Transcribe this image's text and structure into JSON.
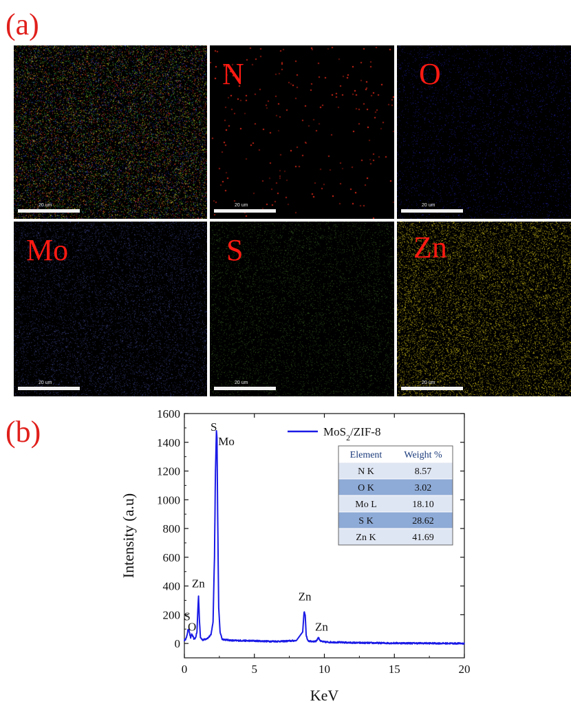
{
  "panel_a_label": "(a)",
  "panel_b_label": "(b)",
  "maps": [
    {
      "element": "",
      "scale_label": "20 um",
      "dot_colors": [
        "#c8c020",
        "#2a3cc0",
        "#d83020",
        "#30a030"
      ],
      "density": 0.22
    },
    {
      "element": "N",
      "scale_label": "20 um",
      "dot_colors": [
        "#e02a1a"
      ],
      "density": 0.003
    },
    {
      "element": "O",
      "scale_label": "20 um",
      "dot_colors": [
        "#1a1a90"
      ],
      "density": 0.06
    },
    {
      "element": "Mo",
      "scale_label": "20 um",
      "dot_colors": [
        "#28306a",
        "#3a4080"
      ],
      "density": 0.12
    },
    {
      "element": "S",
      "scale_label": "20 um",
      "dot_colors": [
        "#2a4a1a",
        "#345820"
      ],
      "density": 0.1
    },
    {
      "element": "Zn",
      "scale_label": "20 um",
      "dot_colors": [
        "#c8b818",
        "#a89a10"
      ],
      "density": 0.2
    }
  ],
  "chart_data": {
    "type": "line",
    "xlabel": "KeV",
    "ylabel": "Intensity (a.u)",
    "xlim": [
      0,
      20
    ],
    "ylim": [
      -100,
      1600
    ],
    "xticks": [
      0,
      5,
      10,
      15,
      20
    ],
    "yticks": [
      0,
      200,
      400,
      600,
      800,
      1000,
      1200,
      1400,
      1600
    ],
    "series": [
      {
        "name": "MoS2/ZIF-8",
        "color": "#1a1ae6",
        "x": [
          0.0,
          0.15,
          0.25,
          0.32,
          0.4,
          0.45,
          0.52,
          0.6,
          0.7,
          0.8,
          0.9,
          0.95,
          1.01,
          1.08,
          1.15,
          1.3,
          1.5,
          1.7,
          1.9,
          2.05,
          2.15,
          2.22,
          2.29,
          2.33,
          2.38,
          2.45,
          2.55,
          2.7,
          3.0,
          3.5,
          4.0,
          5.0,
          6.0,
          7.0,
          8.0,
          8.45,
          8.55,
          8.63,
          8.7,
          8.8,
          9.0,
          9.4,
          9.57,
          9.75,
          10.0,
          11.0,
          12.0,
          14.0,
          16.0,
          18.0,
          20.0
        ],
        "y": [
          20,
          40,
          90,
          100,
          60,
          40,
          65,
          50,
          30,
          40,
          80,
          200,
          330,
          150,
          40,
          25,
          30,
          40,
          60,
          150,
          600,
          1200,
          1480,
          1430,
          900,
          250,
          80,
          30,
          25,
          20,
          20,
          18,
          15,
          15,
          20,
          80,
          220,
          200,
          60,
          20,
          15,
          15,
          40,
          15,
          10,
          8,
          5,
          3,
          2,
          1,
          0
        ]
      }
    ],
    "peak_labels": [
      {
        "text": "S",
        "x": 0.2,
        "y": 160
      },
      {
        "text": "O",
        "x": 0.55,
        "y": 90
      },
      {
        "text": "Zn",
        "x": 1.0,
        "y": 390
      },
      {
        "text": "S",
        "x": 2.1,
        "y": 1480
      },
      {
        "text": "Mo",
        "x": 3.0,
        "y": 1380
      },
      {
        "text": "Zn",
        "x": 8.6,
        "y": 300
      },
      {
        "text": "Zn",
        "x": 9.8,
        "y": 90
      }
    ],
    "table": {
      "headers": [
        "Element",
        "Weight %"
      ],
      "rows": [
        [
          "N K",
          "8.57"
        ],
        [
          "O K",
          "3.02"
        ],
        [
          "Mo L",
          "18.10"
        ],
        [
          "S K",
          "28.62"
        ],
        [
          "Zn K",
          "41.69"
        ]
      ]
    }
  }
}
